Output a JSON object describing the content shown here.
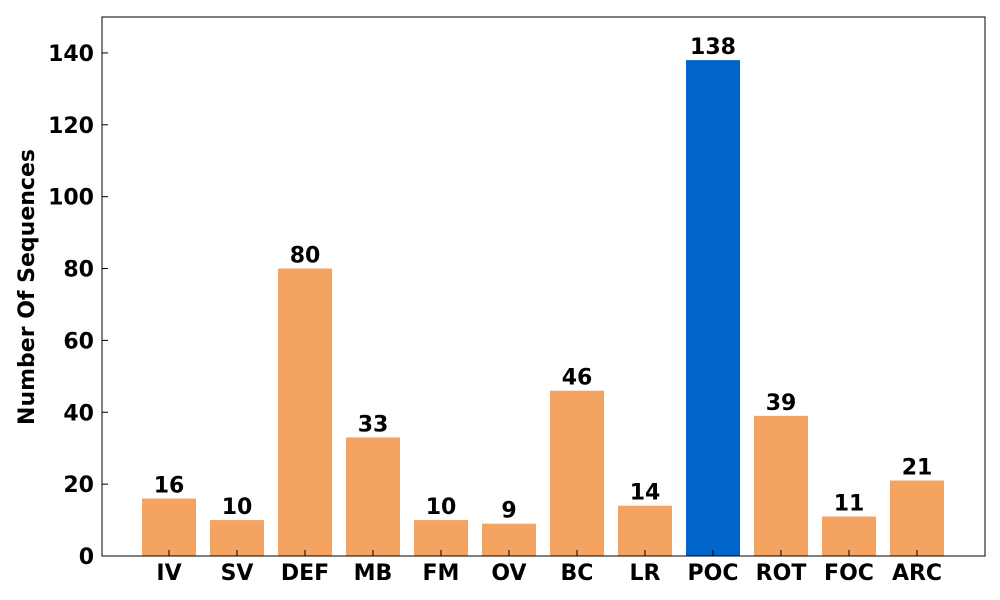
{
  "chart_data": {
    "type": "bar",
    "title": "",
    "xlabel": "",
    "ylabel": "Number Of Sequences",
    "categories": [
      "IV",
      "SV",
      "DEF",
      "MB",
      "FM",
      "OV",
      "BC",
      "LR",
      "POC",
      "ROT",
      "FOC",
      "ARC"
    ],
    "values": [
      16,
      10,
      80,
      33,
      10,
      9,
      46,
      14,
      138,
      39,
      11,
      21
    ],
    "ylim": [
      0,
      150
    ],
    "yticks": [
      0,
      20,
      40,
      60,
      80,
      100,
      120,
      140
    ],
    "grid": false,
    "default_color": "#F4A460",
    "highlight": {
      "category": "POC",
      "color": "#0066CC"
    }
  }
}
